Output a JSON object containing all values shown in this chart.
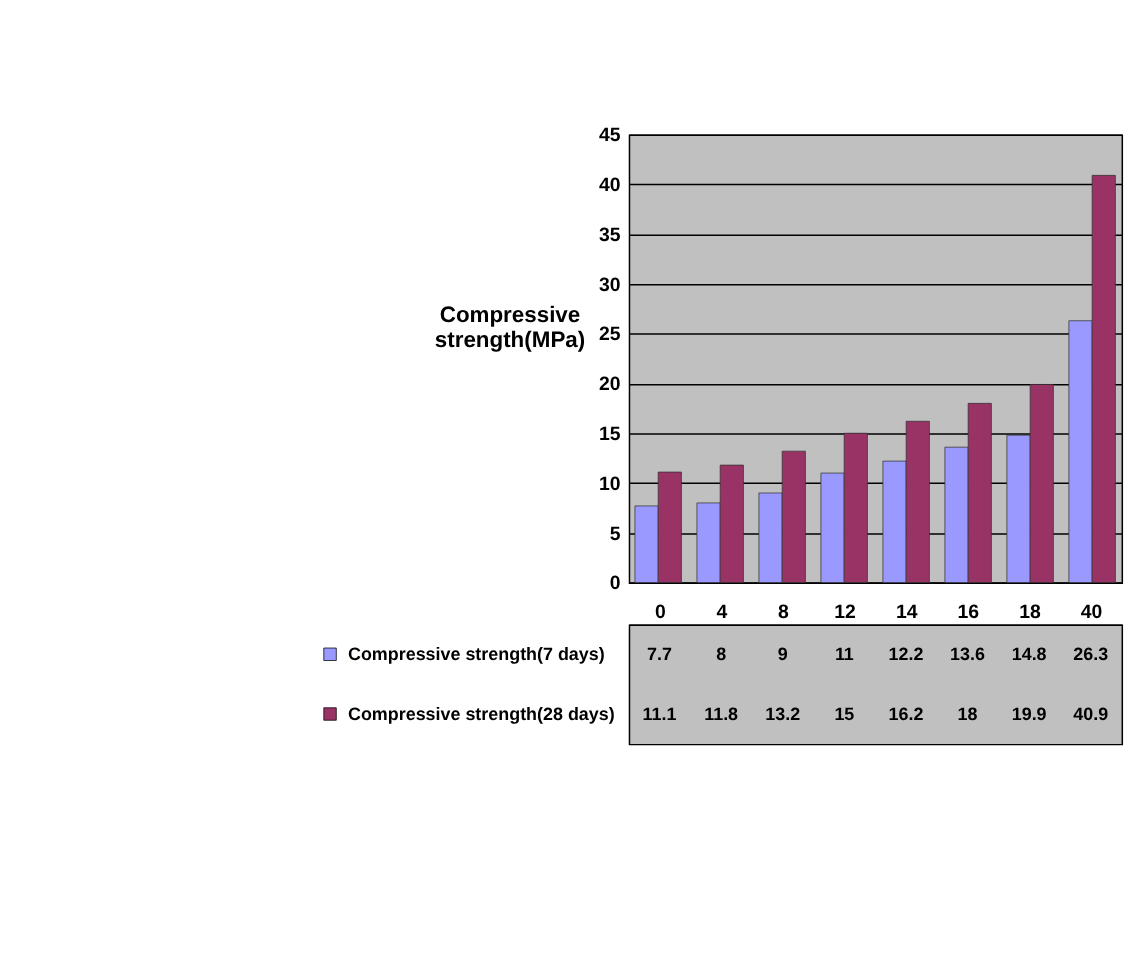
{
  "chart_data": {
    "type": "bar",
    "ylabel": "Compressive strength(MPa)",
    "categories": [
      "0",
      "4",
      "8",
      "12",
      "14",
      "16",
      "18",
      "40"
    ],
    "series": [
      {
        "name": "Compressive strength(7 days)",
        "color": "#9999ff",
        "values": [
          7.7,
          8,
          9,
          11,
          12.2,
          13.6,
          14.8,
          26.3
        ]
      },
      {
        "name": "Compressive strength(28 days)",
        "color": "#993366",
        "values": [
          11.1,
          11.8,
          13.2,
          15,
          16.2,
          18,
          19.9,
          40.9
        ]
      }
    ],
    "ylim": [
      0,
      45
    ],
    "yticks": [
      0,
      5,
      10,
      15,
      20,
      25,
      30,
      35,
      40,
      45
    ],
    "grid": "y",
    "legend": "bottom",
    "data_labels": true
  }
}
